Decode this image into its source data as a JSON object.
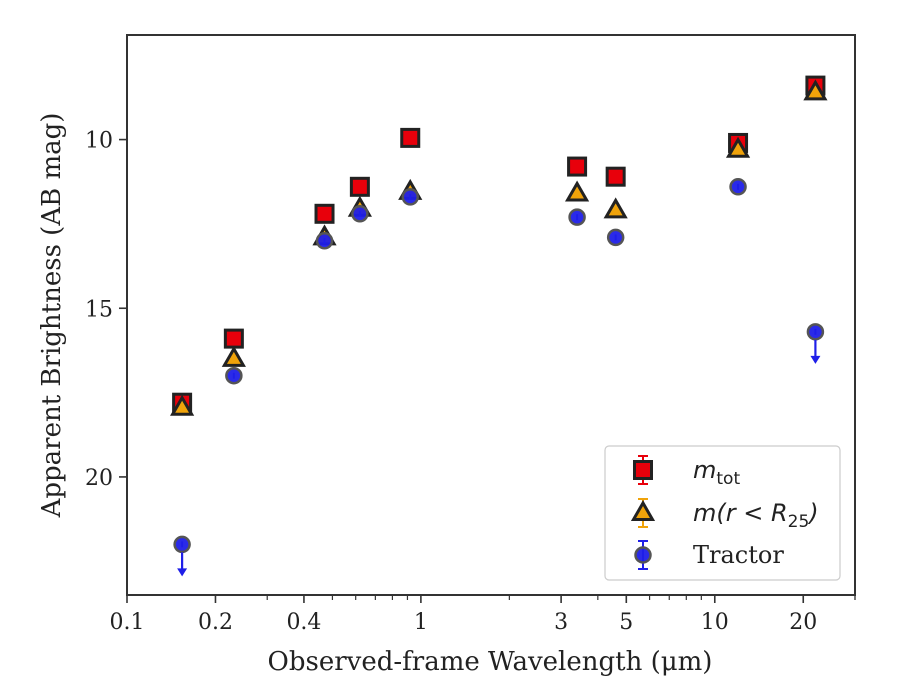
{
  "chart_data": {
    "type": "scatter",
    "xlabel": "Observed-frame Wavelength (μm)",
    "ylabel": "Apparent Brightness (AB mag)",
    "x_scale": "log",
    "y_inverted": true,
    "xlim": [
      0.1,
      30
    ],
    "ylim": [
      23.5,
      6.9
    ],
    "x_ticks": [
      {
        "value": 0.1,
        "label": "0.1"
      },
      {
        "value": 0.2,
        "label": "0.2"
      },
      {
        "value": 0.4,
        "label": "0.4"
      },
      {
        "value": 1,
        "label": "1"
      },
      {
        "value": 3,
        "label": "3"
      },
      {
        "value": 5,
        "label": "5"
      },
      {
        "value": 10,
        "label": "10"
      },
      {
        "value": 20,
        "label": "20"
      }
    ],
    "y_ticks": [
      {
        "value": 10,
        "label": "10"
      },
      {
        "value": 15,
        "label": "15"
      },
      {
        "value": 20,
        "label": "20"
      }
    ],
    "grid": false,
    "legend_position": "bottom-right",
    "series": [
      {
        "name": "m_tot",
        "marker": "square",
        "color": "#e8000b",
        "edge_color": "#222222",
        "errorbar_color": "#e8000b",
        "points": [
          {
            "x": 0.154,
            "y": 17.8
          },
          {
            "x": 0.231,
            "y": 15.9
          },
          {
            "x": 0.47,
            "y": 12.2
          },
          {
            "x": 0.62,
            "y": 11.4
          },
          {
            "x": 0.92,
            "y": 9.95
          },
          {
            "x": 3.4,
            "y": 10.8
          },
          {
            "x": 4.6,
            "y": 11.1
          },
          {
            "x": 12.0,
            "y": 10.1
          },
          {
            "x": 22.0,
            "y": 8.4
          }
        ]
      },
      {
        "name": "m(r<R25)",
        "marker": "triangle",
        "color": "#f0a30a",
        "edge_color": "#222222",
        "errorbar_color": "#f0a30a",
        "points": [
          {
            "x": 0.154,
            "y": 17.95
          },
          {
            "x": 0.231,
            "y": 16.5
          },
          {
            "x": 0.47,
            "y": 12.9
          },
          {
            "x": 0.62,
            "y": 12.05
          },
          {
            "x": 0.92,
            "y": 11.55
          },
          {
            "x": 3.4,
            "y": 11.6
          },
          {
            "x": 4.6,
            "y": 12.1
          },
          {
            "x": 12.0,
            "y": 10.3
          },
          {
            "x": 22.0,
            "y": 8.6
          }
        ]
      },
      {
        "name": "Tractor",
        "marker": "circle",
        "color": "#1f1fe8",
        "edge_color": "#555555",
        "errorbar_color": "#1f1fe8",
        "points": [
          {
            "x": 0.154,
            "y": 22.0,
            "upper_limit": true
          },
          {
            "x": 0.231,
            "y": 17.0
          },
          {
            "x": 0.47,
            "y": 13.0
          },
          {
            "x": 0.62,
            "y": 12.2
          },
          {
            "x": 0.92,
            "y": 11.7
          },
          {
            "x": 3.4,
            "y": 12.3
          },
          {
            "x": 4.6,
            "y": 12.9
          },
          {
            "x": 12.0,
            "y": 11.4
          },
          {
            "x": 22.0,
            "y": 15.7,
            "upper_limit": true
          }
        ]
      }
    ],
    "legend": [
      {
        "base": "m",
        "sub": "tot",
        "rest": ""
      },
      {
        "base": "m(r < R",
        "sub": "25",
        "rest": ")"
      },
      {
        "base": "Tractor",
        "sub": "",
        "rest": "",
        "plain": true
      }
    ]
  }
}
